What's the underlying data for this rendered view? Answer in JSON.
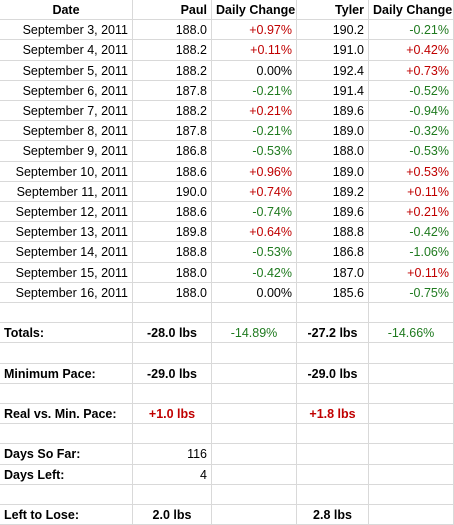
{
  "header": {
    "date": "Date",
    "paul": "Paul",
    "paul_change": "Daily Change",
    "tyler": "Tyler",
    "tyler_change": "Daily Change"
  },
  "daily_rows": [
    {
      "date": "September 3, 2011",
      "paul": "188.0",
      "paul_change": "+0.97%",
      "tyler": "190.2",
      "tyler_change": "-0.21%"
    },
    {
      "date": "September 4, 2011",
      "paul": "188.2",
      "paul_change": "+0.11%",
      "tyler": "191.0",
      "tyler_change": "+0.42%"
    },
    {
      "date": "September 5, 2011",
      "paul": "188.2",
      "paul_change": "0.00%",
      "tyler": "192.4",
      "tyler_change": "+0.73%"
    },
    {
      "date": "September 6, 2011",
      "paul": "187.8",
      "paul_change": "-0.21%",
      "tyler": "191.4",
      "tyler_change": "-0.52%"
    },
    {
      "date": "September 7, 2011",
      "paul": "188.2",
      "paul_change": "+0.21%",
      "tyler": "189.6",
      "tyler_change": "-0.94%"
    },
    {
      "date": "September 8, 2011",
      "paul": "187.8",
      "paul_change": "-0.21%",
      "tyler": "189.0",
      "tyler_change": "-0.32%"
    },
    {
      "date": "September 9, 2011",
      "paul": "186.8",
      "paul_change": "-0.53%",
      "tyler": "188.0",
      "tyler_change": "-0.53%"
    },
    {
      "date": "September 10, 2011",
      "paul": "188.6",
      "paul_change": "+0.96%",
      "tyler": "189.0",
      "tyler_change": "+0.53%"
    },
    {
      "date": "September 11, 2011",
      "paul": "190.0",
      "paul_change": "+0.74%",
      "tyler": "189.2",
      "tyler_change": "+0.11%"
    },
    {
      "date": "September 12, 2011",
      "paul": "188.6",
      "paul_change": "-0.74%",
      "tyler": "189.6",
      "tyler_change": "+0.21%"
    },
    {
      "date": "September 13, 2011",
      "paul": "189.8",
      "paul_change": "+0.64%",
      "tyler": "188.8",
      "tyler_change": "-0.42%"
    },
    {
      "date": "September 14, 2011",
      "paul": "188.8",
      "paul_change": "-0.53%",
      "tyler": "186.8",
      "tyler_change": "-1.06%"
    },
    {
      "date": "September 15, 2011",
      "paul": "188.0",
      "paul_change": "-0.42%",
      "tyler": "187.0",
      "tyler_change": "+0.11%"
    },
    {
      "date": "September 16, 2011",
      "paul": "188.0",
      "paul_change": "0.00%",
      "tyler": "185.6",
      "tyler_change": "-0.75%"
    }
  ],
  "summary_rows": [
    {
      "label": "",
      "paul": "",
      "paul_change": "",
      "tyler": "",
      "tyler_change": ""
    },
    {
      "label": "Totals:",
      "paul": "-28.0 lbs",
      "paul_change": "-14.89%",
      "tyler": "-27.2 lbs",
      "tyler_change": "-14.66%"
    },
    {
      "label": "",
      "paul": "",
      "paul_change": "",
      "tyler": "",
      "tyler_change": ""
    },
    {
      "label": "Minimum Pace:",
      "paul": "-29.0 lbs",
      "paul_change": "",
      "tyler": "-29.0 lbs",
      "tyler_change": ""
    },
    {
      "label": "",
      "paul": "",
      "paul_change": "",
      "tyler": "",
      "tyler_change": ""
    },
    {
      "label": "Real vs. Min. Pace:",
      "paul": "+1.0 lbs",
      "paul_change": "",
      "tyler": "+1.8 lbs",
      "tyler_change": ""
    },
    {
      "label": "",
      "paul": "",
      "paul_change": "",
      "tyler": "",
      "tyler_change": ""
    },
    {
      "label": "Days So Far:",
      "paul": "116",
      "paul_change": "",
      "tyler": "",
      "tyler_change": ""
    },
    {
      "label": "Days Left:",
      "paul": "4",
      "paul_change": "",
      "tyler": "",
      "tyler_change": ""
    },
    {
      "label": "",
      "paul": "",
      "paul_change": "",
      "tyler": "",
      "tyler_change": ""
    },
    {
      "label": "Left to Lose:",
      "paul": "2.0 lbs",
      "paul_change": "",
      "tyler": "2.8 lbs",
      "tyler_change": ""
    }
  ],
  "colors": {
    "positive": "#c00000",
    "negative": "#1f7a1f",
    "gridline": "#d9d9d9"
  }
}
